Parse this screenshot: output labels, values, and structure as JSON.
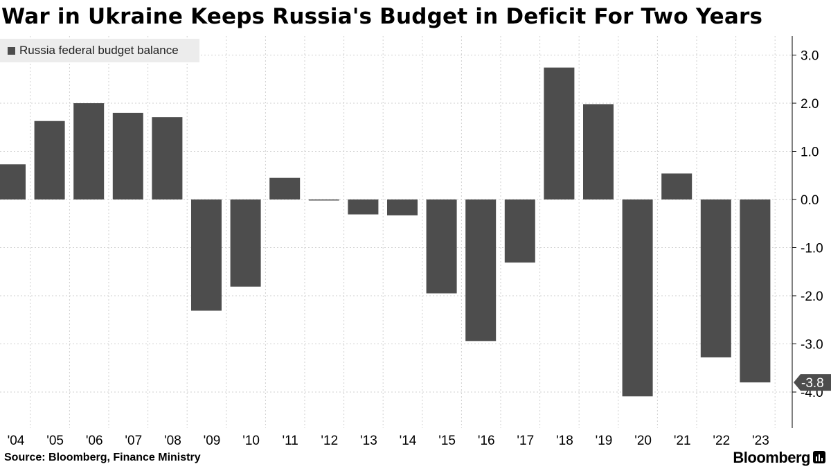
{
  "title": "War in Ukraine Keeps Russia's Budget in Deficit For Two Years",
  "source": "Source: Bloomberg, Finance Ministry",
  "brand": "Bloomberg",
  "colors": {
    "bar": "#4d4d4d",
    "grid": "#cfcfcf",
    "callout": "#4d4d4d",
    "legend_bg": "#ececec"
  },
  "chart_data": {
    "type": "bar",
    "title": "War in Ukraine Keeps Russia's Budget in Deficit For Two Years",
    "xlabel": "",
    "ylabel": "",
    "legend": "top-left",
    "series": [
      {
        "name": "Russia federal budget balance",
        "values": [
          0.73,
          1.63,
          2.0,
          1.8,
          1.71,
          -2.31,
          -1.81,
          0.45,
          -0.02,
          -0.31,
          -0.33,
          -1.95,
          -2.94,
          -1.31,
          2.74,
          1.98,
          -4.09,
          0.54,
          -3.28,
          -3.8
        ]
      }
    ],
    "categories": [
      "'04",
      "'05",
      "'06",
      "'07",
      "'08",
      "'09",
      "'10",
      "'11",
      "'12",
      "'13",
      "'14",
      "'15",
      "'16",
      "'17",
      "'18",
      "'19",
      "'20",
      "'21",
      "'22",
      "'23"
    ],
    "yticks": [
      "3.0",
      "2.0",
      "1.0",
      "0.0",
      "-1.0",
      "-2.0",
      "-3.0",
      "-4.0"
    ],
    "ytick_values": [
      3,
      2,
      1,
      0,
      -1,
      -2,
      -3,
      -4
    ],
    "ylim": [
      -4.75,
      3.2
    ],
    "last_value_label": "-3.8",
    "grid": true
  }
}
